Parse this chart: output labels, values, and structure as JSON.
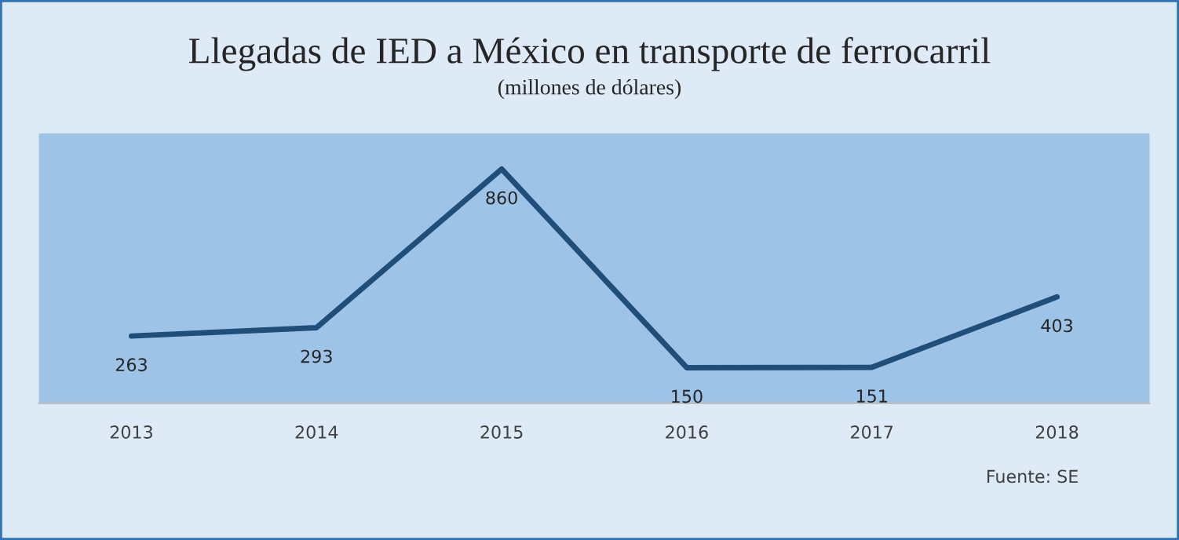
{
  "chart_data": {
    "type": "line",
    "title": "Llegadas de IED a México en transporte de ferrocarril",
    "subtitle": "(millones de dólares)",
    "categories": [
      "2013",
      "2014",
      "2015",
      "2016",
      "2017",
      "2018"
    ],
    "series": [
      {
        "color": "#1f4e79",
        "values": [
          263,
          293,
          860,
          150,
          151,
          403
        ]
      }
    ],
    "data_labels": true,
    "grid": false,
    "legend": false,
    "marker": "none",
    "line_style": "solid",
    "tick_labels": "x",
    "annotations": [
      "Fuente: SE"
    ]
  }
}
